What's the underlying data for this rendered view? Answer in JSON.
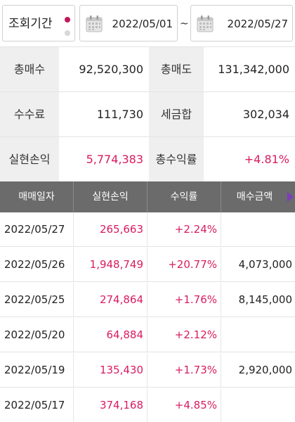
{
  "period": {
    "label": "조회기간",
    "start_date": "2022/05/01",
    "separator": "~",
    "end_date": "2022/05/27"
  },
  "summary": {
    "total_buy_label": "총매수",
    "total_buy_value": "92,520,300",
    "total_sell_label": "총매도",
    "total_sell_value": "131,342,000",
    "fee_label": "수수료",
    "fee_value": "111,730",
    "tax_label": "세금합",
    "tax_value": "302,034",
    "realized_pl_label": "실현손익",
    "realized_pl_value": "5,774,383",
    "total_return_label": "총수익률",
    "total_return_value": "+4.81%"
  },
  "table": {
    "columns": [
      "매매일자",
      "실현손익",
      "수익률",
      "매수금액"
    ],
    "rows": [
      {
        "date": "2022/05/27",
        "pl": "265,663",
        "rate": "+2.24%",
        "buy": ""
      },
      {
        "date": "2022/05/26",
        "pl": "1,948,749",
        "rate": "+20.77%",
        "buy": "4,073,000"
      },
      {
        "date": "2022/05/25",
        "pl": "274,864",
        "rate": "+1.76%",
        "buy": "8,145,000"
      },
      {
        "date": "2022/05/20",
        "pl": "64,884",
        "rate": "+2.12%",
        "buy": ""
      },
      {
        "date": "2022/05/19",
        "pl": "135,430",
        "rate": "+1.73%",
        "buy": "2,920,000"
      },
      {
        "date": "2022/05/17",
        "pl": "374,168",
        "rate": "+4.85%",
        "buy": ""
      }
    ]
  },
  "colors": {
    "accent_pink": "#d81b60",
    "header_gray": "#6b6b6b",
    "label_bg": "#efefef",
    "scroll_arrow": "#7b3fb8"
  },
  "icons": {
    "calendar": "calendar-icon",
    "scroll": "triangle-right-icon"
  }
}
